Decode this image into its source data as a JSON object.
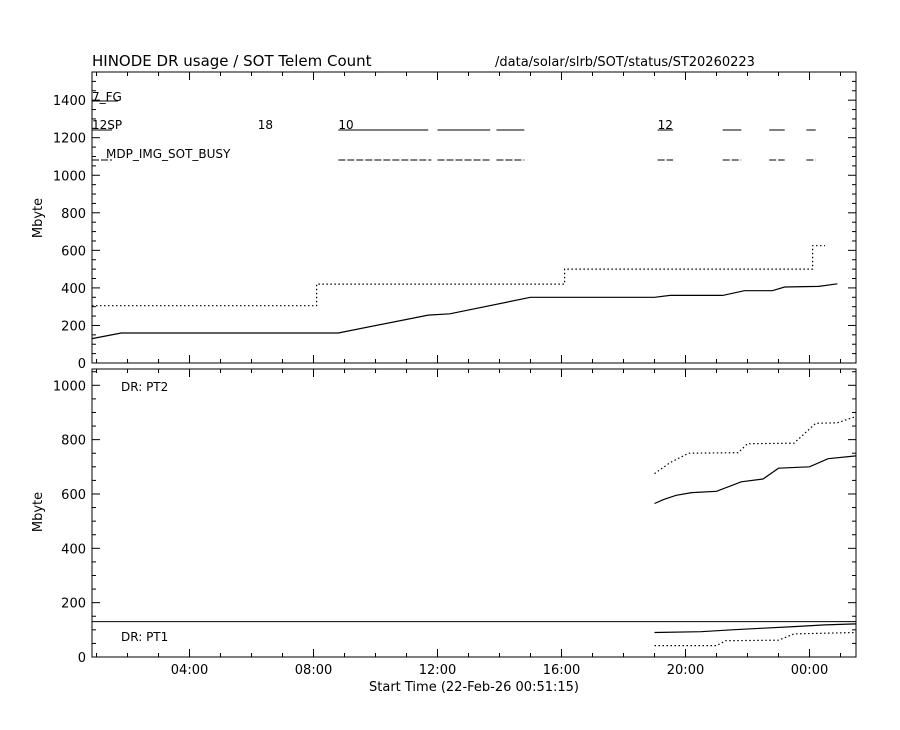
{
  "header": {
    "title": "HINODE DR usage / SOT Telem Count",
    "path": "/data/solar/slrb/SOT/status/ST20260223"
  },
  "chart_data": [
    {
      "type": "line",
      "panel": "top",
      "ylabel": "Mbyte",
      "ylim": [
        0,
        1550
      ],
      "yticks": [
        0,
        200,
        400,
        600,
        800,
        1000,
        1200,
        1400
      ],
      "xlim_hours": [
        0.854,
        25.5
      ],
      "xticks": [
        {
          "hour": 4,
          "label": "04:00"
        },
        {
          "hour": 8,
          "label": "08:00"
        },
        {
          "hour": 12,
          "label": "12:00"
        },
        {
          "hour": 16,
          "label": "16:00"
        },
        {
          "hour": 20,
          "label": "20:00"
        },
        {
          "hour": 24,
          "label": "00:00"
        }
      ],
      "labels": {
        "fg": "7_FG",
        "sp": "12SP",
        "sp_counts": [
          {
            "hour": 6.2,
            "text": "18"
          },
          {
            "hour": 8.8,
            "text": "10"
          },
          {
            "hour": 19.1,
            "text": "12"
          }
        ],
        "busy": "MDP_IMG_SOT_BUSY"
      },
      "activity_segments": {
        "sp_row": [
          [
            0.854,
            1.5
          ],
          [
            8.8,
            11.7
          ],
          [
            12.0,
            13.7
          ],
          [
            13.9,
            14.8
          ],
          [
            19.1,
            19.6
          ],
          [
            21.2,
            21.8
          ],
          [
            22.7,
            23.2
          ],
          [
            23.9,
            24.2
          ]
        ],
        "busy_row": [
          [
            0.854,
            1.5
          ],
          [
            8.8,
            11.8
          ],
          [
            12.0,
            13.7
          ],
          [
            13.9,
            14.8
          ],
          [
            19.1,
            19.6
          ],
          [
            21.2,
            21.8
          ],
          [
            22.7,
            23.2
          ],
          [
            23.9,
            24.2
          ]
        ]
      },
      "series": [
        {
          "style": "solid",
          "x": [
            0.854,
            1.8,
            8.8,
            11.7,
            12.4,
            15.0,
            19.0,
            19.5,
            21.2,
            21.9,
            22.8,
            23.2,
            24.3,
            24.9
          ],
          "values": [
            130,
            160,
            160,
            255,
            262,
            350,
            350,
            360,
            360,
            385,
            385,
            405,
            408,
            422
          ]
        },
        {
          "style": "dotted",
          "x": [
            0.854,
            8.1,
            8.1,
            16.1,
            16.1,
            24.1,
            24.1,
            24.5
          ],
          "values": [
            305,
            305,
            420,
            420,
            500,
            500,
            625,
            625
          ]
        }
      ]
    },
    {
      "type": "line",
      "panel": "bottom",
      "ylabel": "Mbyte",
      "ylim": [
        0,
        1060
      ],
      "yticks": [
        0,
        200,
        400,
        600,
        800,
        1000
      ],
      "xlim_hours": [
        0.854,
        25.5
      ],
      "xticks": [
        {
          "hour": 4,
          "label": "04:00"
        },
        {
          "hour": 8,
          "label": "08:00"
        },
        {
          "hour": 12,
          "label": "12:00"
        },
        {
          "hour": 16,
          "label": "16:00"
        },
        {
          "hour": 20,
          "label": "20:00"
        },
        {
          "hour": 24,
          "label": "00:00"
        }
      ],
      "xlabel": "Start Time (22-Feb-26 00:51:15)",
      "labels": {
        "pt2": "DR: PT2",
        "pt1": "DR: PT1"
      },
      "reference_line": 130,
      "series": [
        {
          "name": "DR: PT2",
          "style": "solid",
          "x": [
            19.0,
            19.3,
            19.7,
            20.2,
            21.0,
            21.8,
            22.5,
            23.0,
            24.0,
            24.6,
            25.5
          ],
          "values": [
            565,
            580,
            595,
            605,
            610,
            645,
            655,
            695,
            700,
            730,
            740
          ]
        },
        {
          "name": "DR: PT2",
          "style": "dotted",
          "x": [
            19.0,
            19.5,
            20.1,
            21.7,
            22.0,
            23.5,
            24.2,
            24.9,
            25.5
          ],
          "values": [
            675,
            715,
            750,
            752,
            785,
            787,
            860,
            862,
            885
          ]
        },
        {
          "name": "DR: PT1",
          "style": "solid",
          "x": [
            19.0,
            20.5,
            21.5,
            22.5,
            23.5,
            24.5,
            25.5
          ],
          "values": [
            90,
            93,
            100,
            106,
            112,
            118,
            122
          ]
        },
        {
          "name": "DR: PT1",
          "style": "dotted",
          "x": [
            19.0,
            21.0,
            21.3,
            23.0,
            23.5,
            25.5
          ],
          "values": [
            42,
            42,
            60,
            62,
            85,
            90
          ]
        }
      ]
    }
  ]
}
